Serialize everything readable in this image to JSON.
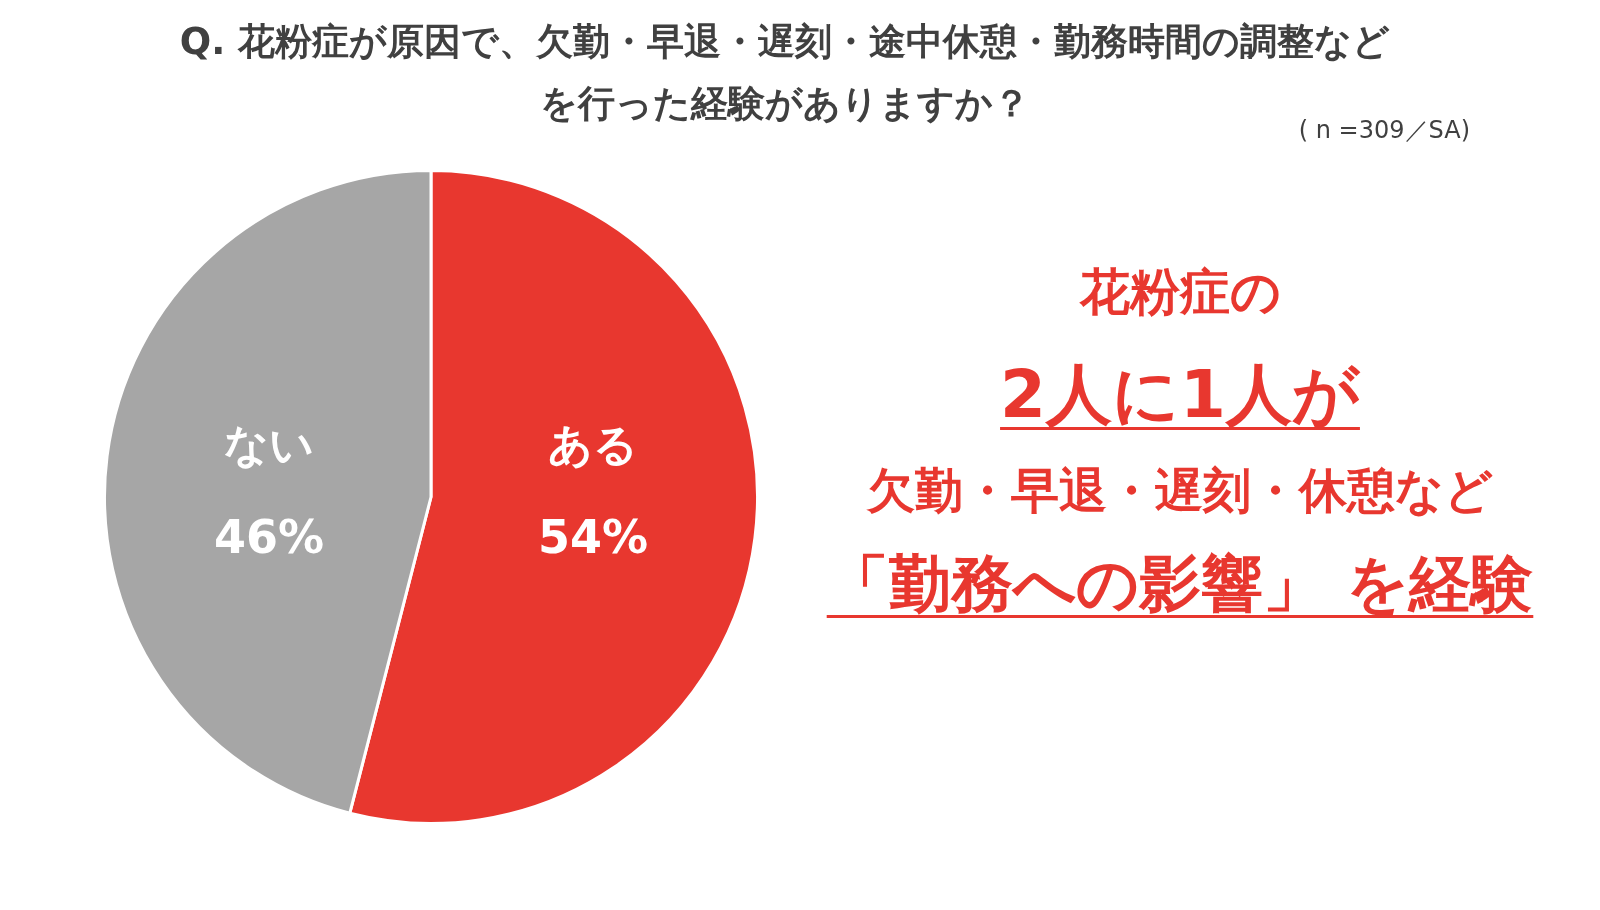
{
  "chart_data": {
    "type": "pie",
    "title": "Q. 花粉症が原因で、欠勤・早退・遅刻・途中休憩・勤務時間の調整などを行った経験がありますか？",
    "subtitle": "( n =309／SA)",
    "categories": [
      "ある",
      "ない"
    ],
    "values": [
      54,
      46
    ],
    "colors": [
      "#e8372f",
      "#a6a6a6"
    ],
    "value_labels": [
      "54%",
      "46%"
    ],
    "legend": false,
    "annotations": [
      "花粉症の",
      "2人に1人が",
      "欠勤・早退・遅刻・休憩など",
      "「勤務への影響」 を経験"
    ]
  }
}
